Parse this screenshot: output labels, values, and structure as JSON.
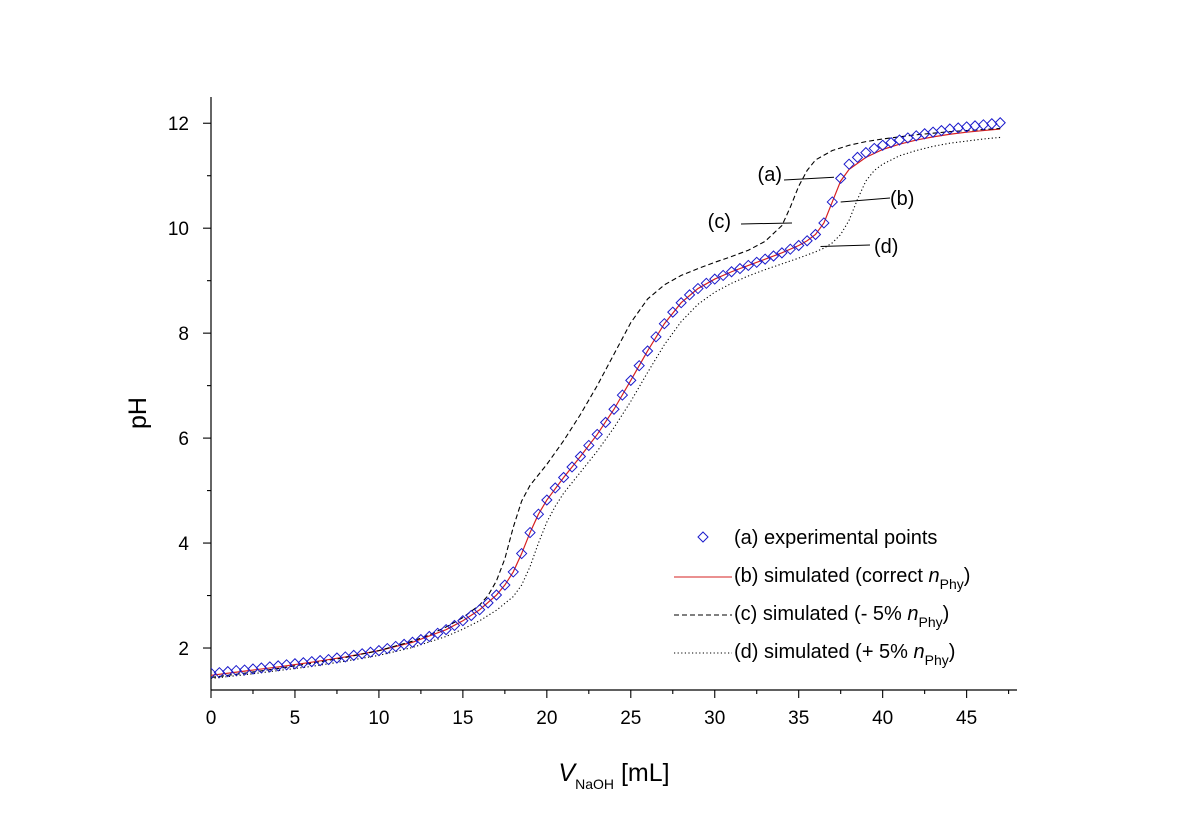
{
  "chart_data": {
    "type": "scatter",
    "title": "",
    "xlabel": {
      "main": "V",
      "sub": "NaOH",
      "unit": " [mL]"
    },
    "ylabel": "pH",
    "xlim": [
      0,
      48
    ],
    "ylim": [
      1.2,
      12.5
    ],
    "xticks": [
      0,
      5,
      10,
      15,
      20,
      25,
      30,
      35,
      40,
      45
    ],
    "yticks": [
      2,
      4,
      6,
      8,
      10,
      12
    ],
    "legend_position": "bottom-right",
    "series": [
      {
        "name": "experimental",
        "style": "diamond",
        "color": "#1a1acc",
        "legend_label": "(a) experimental points",
        "points": [
          [
            0,
            1.52
          ],
          [
            0.5,
            1.53
          ],
          [
            1,
            1.55
          ],
          [
            1.5,
            1.57
          ],
          [
            2,
            1.58
          ],
          [
            2.5,
            1.6
          ],
          [
            3,
            1.62
          ],
          [
            3.5,
            1.64
          ],
          [
            4,
            1.66
          ],
          [
            4.5,
            1.68
          ],
          [
            5,
            1.7
          ],
          [
            5.5,
            1.72
          ],
          [
            6,
            1.74
          ],
          [
            6.5,
            1.76
          ],
          [
            7,
            1.78
          ],
          [
            7.5,
            1.81
          ],
          [
            8,
            1.83
          ],
          [
            8.5,
            1.86
          ],
          [
            9,
            1.89
          ],
          [
            9.5,
            1.92
          ],
          [
            10,
            1.95
          ],
          [
            10.5,
            1.99
          ],
          [
            11,
            2.03
          ],
          [
            11.5,
            2.07
          ],
          [
            12,
            2.11
          ],
          [
            12.5,
            2.16
          ],
          [
            13,
            2.22
          ],
          [
            13.5,
            2.28
          ],
          [
            14,
            2.35
          ],
          [
            14.5,
            2.43
          ],
          [
            15,
            2.52
          ],
          [
            15.5,
            2.62
          ],
          [
            16,
            2.73
          ],
          [
            16.5,
            2.86
          ],
          [
            17,
            3.01
          ],
          [
            17.5,
            3.2
          ],
          [
            18,
            3.45
          ],
          [
            18.5,
            3.8
          ],
          [
            19,
            4.2
          ],
          [
            19.5,
            4.55
          ],
          [
            20,
            4.82
          ],
          [
            20.5,
            5.05
          ],
          [
            21,
            5.25
          ],
          [
            21.5,
            5.45
          ],
          [
            22,
            5.65
          ],
          [
            22.5,
            5.86
          ],
          [
            23,
            6.07
          ],
          [
            23.5,
            6.3
          ],
          [
            24,
            6.55
          ],
          [
            24.5,
            6.82
          ],
          [
            25,
            7.1
          ],
          [
            25.5,
            7.38
          ],
          [
            26,
            7.66
          ],
          [
            26.5,
            7.93
          ],
          [
            27,
            8.18
          ],
          [
            27.5,
            8.4
          ],
          [
            28,
            8.58
          ],
          [
            28.5,
            8.73
          ],
          [
            29,
            8.85
          ],
          [
            29.5,
            8.95
          ],
          [
            30,
            9.03
          ],
          [
            30.5,
            9.1
          ],
          [
            31,
            9.17
          ],
          [
            31.5,
            9.23
          ],
          [
            32,
            9.29
          ],
          [
            32.5,
            9.35
          ],
          [
            33,
            9.41
          ],
          [
            33.5,
            9.47
          ],
          [
            34,
            9.53
          ],
          [
            34.5,
            9.6
          ],
          [
            35,
            9.67
          ],
          [
            35.5,
            9.76
          ],
          [
            36,
            9.88
          ],
          [
            36.5,
            10.1
          ],
          [
            37,
            10.5
          ],
          [
            37.5,
            10.95
          ],
          [
            38,
            11.22
          ],
          [
            38.5,
            11.35
          ],
          [
            39,
            11.44
          ],
          [
            39.5,
            11.52
          ],
          [
            40,
            11.58
          ],
          [
            40.5,
            11.63
          ],
          [
            41,
            11.68
          ],
          [
            41.5,
            11.72
          ],
          [
            42,
            11.76
          ],
          [
            42.5,
            11.8
          ],
          [
            43,
            11.83
          ],
          [
            43.5,
            11.86
          ],
          [
            44,
            11.89
          ],
          [
            44.5,
            11.91
          ],
          [
            45,
            11.93
          ],
          [
            45.5,
            11.95
          ],
          [
            46,
            11.97
          ],
          [
            46.5,
            11.99
          ],
          [
            47,
            12.01
          ]
        ]
      },
      {
        "name": "sim-correct",
        "style": "solid",
        "color": "#d62020",
        "legend_label": "(b) simulated (correct ",
        "legend_var": "n",
        "legend_sub": "Phy",
        "legend_tail": ")",
        "points": [
          [
            0,
            1.48
          ],
          [
            2,
            1.56
          ],
          [
            4,
            1.64
          ],
          [
            6,
            1.73
          ],
          [
            8,
            1.83
          ],
          [
            10,
            1.95
          ],
          [
            12,
            2.11
          ],
          [
            14,
            2.35
          ],
          [
            15,
            2.52
          ],
          [
            16,
            2.73
          ],
          [
            17,
            3.01
          ],
          [
            17.5,
            3.2
          ],
          [
            18,
            3.45
          ],
          [
            18.5,
            3.8
          ],
          [
            19,
            4.2
          ],
          [
            19.5,
            4.55
          ],
          [
            20,
            4.82
          ],
          [
            21,
            5.25
          ],
          [
            22,
            5.65
          ],
          [
            23,
            6.07
          ],
          [
            24,
            6.55
          ],
          [
            25,
            7.1
          ],
          [
            26,
            7.66
          ],
          [
            27,
            8.18
          ],
          [
            28,
            8.58
          ],
          [
            29,
            8.85
          ],
          [
            30,
            9.03
          ],
          [
            31,
            9.17
          ],
          [
            32,
            9.29
          ],
          [
            33,
            9.41
          ],
          [
            34,
            9.53
          ],
          [
            35,
            9.67
          ],
          [
            35.5,
            9.76
          ],
          [
            36,
            9.88
          ],
          [
            36.5,
            10.1
          ],
          [
            37,
            10.5
          ],
          [
            37.5,
            10.9
          ],
          [
            38,
            11.12
          ],
          [
            39,
            11.35
          ],
          [
            40,
            11.5
          ],
          [
            41,
            11.6
          ],
          [
            42,
            11.68
          ],
          [
            43,
            11.74
          ],
          [
            44,
            11.79
          ],
          [
            45,
            11.83
          ],
          [
            46,
            11.86
          ],
          [
            47,
            11.89
          ]
        ]
      },
      {
        "name": "sim-minus5",
        "style": "dashed",
        "color": "#000000",
        "legend_label": "(c) simulated (- 5% ",
        "legend_var": "n",
        "legend_sub": "Phy",
        "legend_tail": ")",
        "points": [
          [
            0,
            1.44
          ],
          [
            2,
            1.52
          ],
          [
            4,
            1.61
          ],
          [
            6,
            1.71
          ],
          [
            8,
            1.82
          ],
          [
            10,
            1.95
          ],
          [
            12,
            2.13
          ],
          [
            13,
            2.25
          ],
          [
            14,
            2.4
          ],
          [
            15,
            2.58
          ],
          [
            16,
            2.82
          ],
          [
            16.5,
            3.0
          ],
          [
            17,
            3.28
          ],
          [
            17.5,
            3.7
          ],
          [
            18,
            4.3
          ],
          [
            18.5,
            4.8
          ],
          [
            19,
            5.1
          ],
          [
            20,
            5.5
          ],
          [
            21,
            5.95
          ],
          [
            22,
            6.45
          ],
          [
            23,
            7.0
          ],
          [
            24,
            7.6
          ],
          [
            25,
            8.2
          ],
          [
            26,
            8.65
          ],
          [
            27,
            8.92
          ],
          [
            28,
            9.1
          ],
          [
            29,
            9.23
          ],
          [
            30,
            9.35
          ],
          [
            31,
            9.46
          ],
          [
            32,
            9.58
          ],
          [
            33,
            9.75
          ],
          [
            34,
            10.05
          ],
          [
            34.5,
            10.4
          ],
          [
            35,
            10.8
          ],
          [
            35.5,
            11.1
          ],
          [
            36,
            11.3
          ],
          [
            37,
            11.48
          ],
          [
            38,
            11.58
          ],
          [
            39,
            11.65
          ],
          [
            40,
            11.7
          ],
          [
            41,
            11.74
          ],
          [
            42,
            11.78
          ],
          [
            43,
            11.81
          ],
          [
            44,
            11.84
          ],
          [
            45,
            11.86
          ],
          [
            46,
            11.88
          ],
          [
            47,
            11.9
          ]
        ]
      },
      {
        "name": "sim-plus5",
        "style": "dotted",
        "color": "#000000",
        "legend_label": "(d) simulated (+ 5% ",
        "legend_var": "n",
        "legend_sub": "Phy",
        "legend_tail": ")",
        "points": [
          [
            0,
            1.42
          ],
          [
            2,
            1.49
          ],
          [
            4,
            1.57
          ],
          [
            6,
            1.65
          ],
          [
            8,
            1.75
          ],
          [
            10,
            1.86
          ],
          [
            12,
            2.01
          ],
          [
            14,
            2.22
          ],
          [
            15,
            2.36
          ],
          [
            16,
            2.52
          ],
          [
            17,
            2.72
          ],
          [
            18,
            2.98
          ],
          [
            18.5,
            3.2
          ],
          [
            19,
            3.55
          ],
          [
            19.5,
            4.0
          ],
          [
            20,
            4.4
          ],
          [
            20.5,
            4.7
          ],
          [
            21,
            4.95
          ],
          [
            22,
            5.35
          ],
          [
            23,
            5.75
          ],
          [
            24,
            6.2
          ],
          [
            25,
            6.7
          ],
          [
            26,
            7.25
          ],
          [
            27,
            7.78
          ],
          [
            28,
            8.22
          ],
          [
            29,
            8.55
          ],
          [
            30,
            8.78
          ],
          [
            31,
            8.95
          ],
          [
            32,
            9.09
          ],
          [
            33,
            9.21
          ],
          [
            34,
            9.32
          ],
          [
            35,
            9.43
          ],
          [
            36,
            9.55
          ],
          [
            36.5,
            9.62
          ],
          [
            37,
            9.72
          ],
          [
            37.5,
            9.88
          ],
          [
            38,
            10.15
          ],
          [
            38.5,
            10.55
          ],
          [
            39,
            10.9
          ],
          [
            39.5,
            11.1
          ],
          [
            40,
            11.22
          ],
          [
            41,
            11.38
          ],
          [
            42,
            11.48
          ],
          [
            43,
            11.56
          ],
          [
            44,
            11.62
          ],
          [
            45,
            11.66
          ],
          [
            46,
            11.7
          ],
          [
            47,
            11.73
          ]
        ]
      }
    ],
    "annotations": [
      {
        "label": "(a)",
        "target": [
          37.1,
          10.97
        ]
      },
      {
        "label": "(b)",
        "target": [
          37.5,
          10.5
        ]
      },
      {
        "label": "(c)",
        "target": [
          34.6,
          10.1
        ]
      },
      {
        "label": "(d)",
        "target": [
          36.3,
          9.65
        ]
      }
    ]
  }
}
